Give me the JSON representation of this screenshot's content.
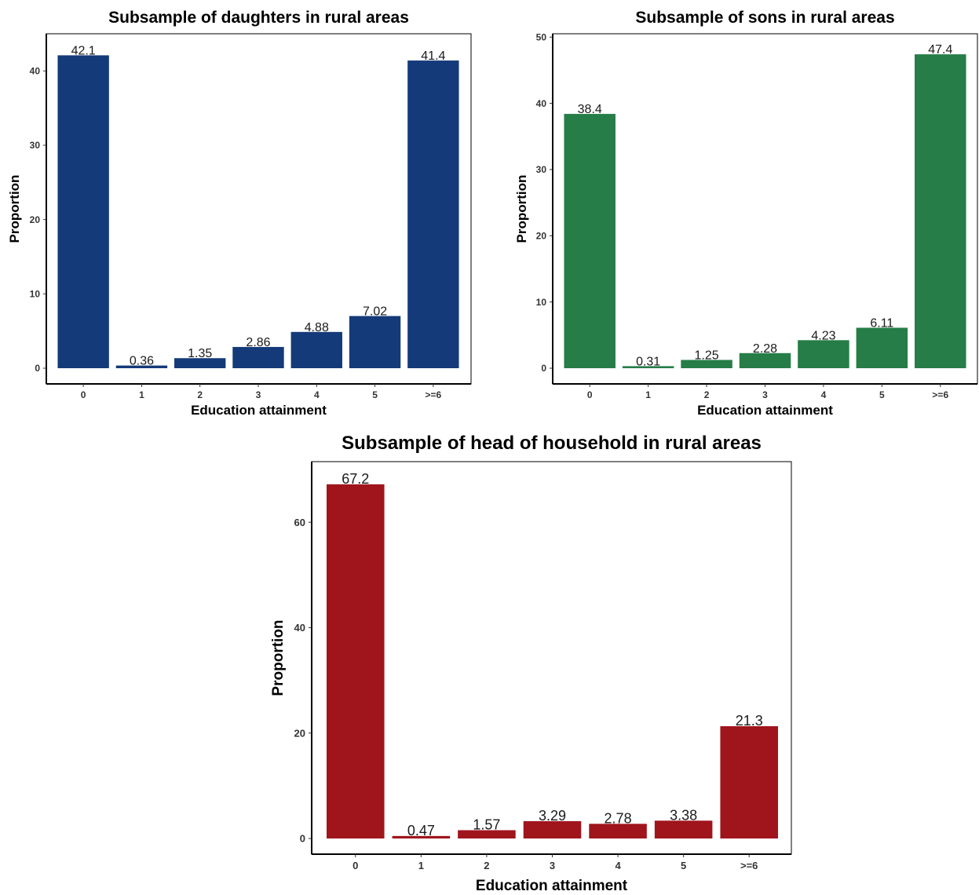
{
  "chart_data": [
    {
      "type": "bar",
      "title": "Subsample of daughters in rural areas",
      "xlabel": "Education attainment",
      "ylabel": "Proportion",
      "categories": [
        "0",
        "1",
        "2",
        "3",
        "4",
        "5",
        ">=6"
      ],
      "values": [
        42.1,
        0.36,
        1.35,
        2.86,
        4.88,
        7.02,
        41.4
      ],
      "value_labels": [
        "42.1",
        "0.36",
        "1.35",
        "2.86",
        "4.88",
        "7.02",
        "41.4"
      ],
      "yticks": [
        0,
        10,
        20,
        30,
        40
      ],
      "ylim": [
        0,
        45
      ],
      "color": "#143a7a",
      "grid": false
    },
    {
      "type": "bar",
      "title": "Subsample of sons in rural areas",
      "xlabel": "Education attainment",
      "ylabel": "Proportion",
      "categories": [
        "0",
        "1",
        "2",
        "3",
        "4",
        "5",
        ">=6"
      ],
      "values": [
        38.4,
        0.31,
        1.25,
        2.28,
        4.23,
        6.11,
        47.4
      ],
      "value_labels": [
        "38.4",
        "0.31",
        "1.25",
        "2.28",
        "4.23",
        "6.11",
        "47.4"
      ],
      "yticks": [
        0,
        10,
        20,
        30,
        40,
        50
      ],
      "ylim": [
        0,
        50.5
      ],
      "color": "#267d47",
      "grid": false
    },
    {
      "type": "bar",
      "title": "Subsample of head of household in rural areas",
      "xlabel": "Education attainment",
      "ylabel": "Proportion",
      "categories": [
        "0",
        "1",
        "2",
        "3",
        "4",
        "5",
        ">=6"
      ],
      "values": [
        67.2,
        0.47,
        1.57,
        3.29,
        2.78,
        3.38,
        21.3
      ],
      "value_labels": [
        "67.2",
        "0.47",
        "1.57",
        "3.29",
        "2.78",
        "3.38",
        "21.3"
      ],
      "yticks": [
        0,
        20,
        40,
        60
      ],
      "ylim": [
        0,
        71.5
      ],
      "color": "#a0141c",
      "grid": false
    }
  ]
}
